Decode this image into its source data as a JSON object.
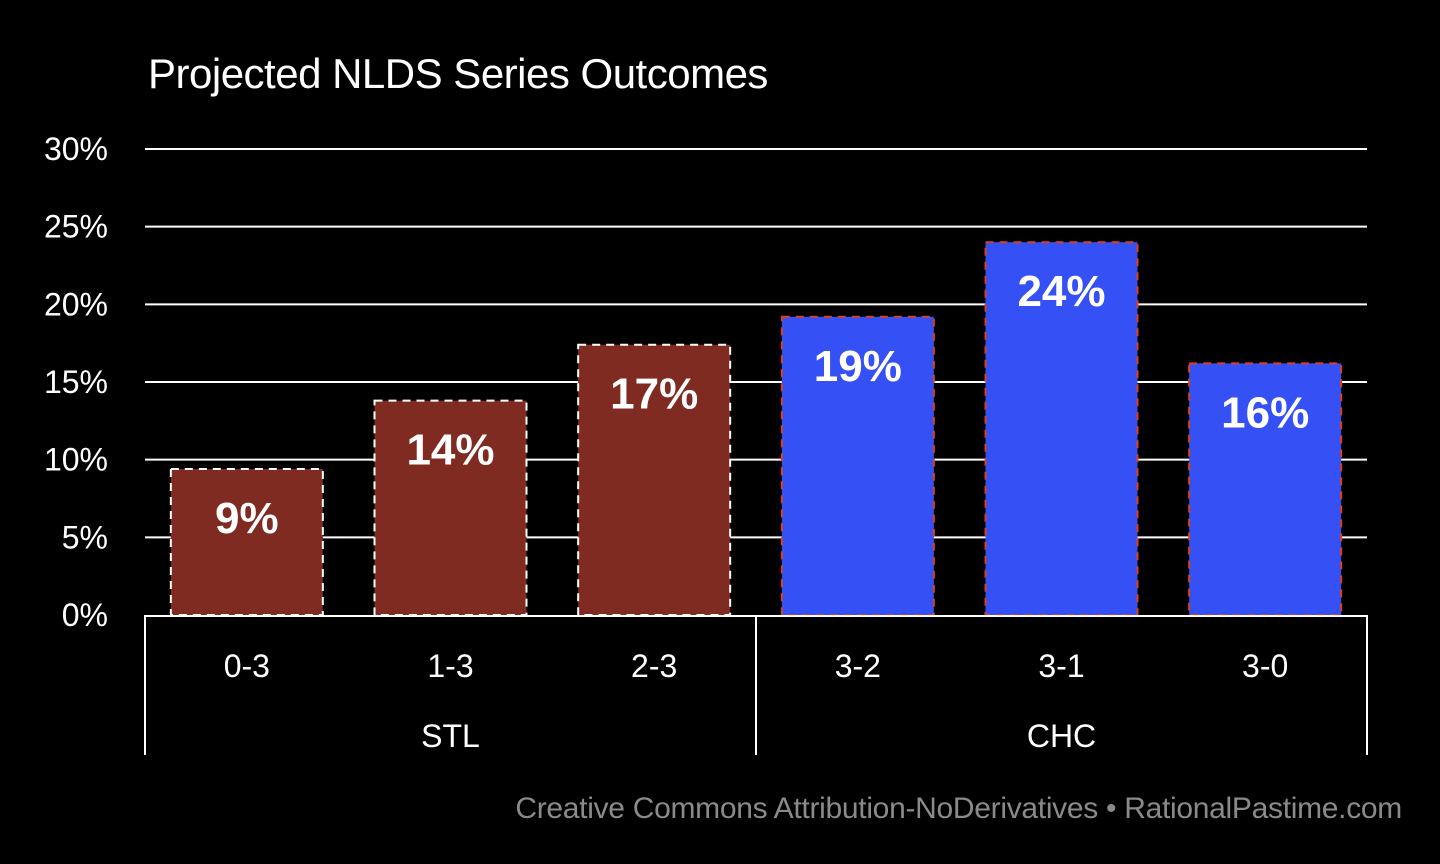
{
  "chart_data": {
    "type": "bar",
    "title": "Projected NLDS Series Outcomes",
    "xlabel": "",
    "ylabel": "",
    "ylim": [
      0,
      30
    ],
    "yticks": [
      "0%",
      "5%",
      "10%",
      "15%",
      "20%",
      "25%",
      "30%"
    ],
    "ytick_values": [
      0,
      5,
      10,
      15,
      20,
      25,
      30
    ],
    "grid": true,
    "categories": [
      "0-3",
      "1-3",
      "2-3",
      "3-2",
      "3-1",
      "3-0"
    ],
    "groups": [
      {
        "name": "STL",
        "categories": [
          "0-3",
          "1-3",
          "2-3"
        ],
        "color": "#7f2b22",
        "border_color": "#ffffff"
      },
      {
        "name": "CHC",
        "categories": [
          "3-2",
          "3-1",
          "3-0"
        ],
        "color": "#3550f5",
        "border_color": "#d9402a"
      }
    ],
    "values": [
      9.4,
      13.8,
      17.4,
      19.2,
      24.0,
      16.2
    ],
    "data_labels": [
      "9%",
      "14%",
      "17%",
      "19%",
      "24%",
      "16%"
    ],
    "bar_groups": [
      "STL",
      "STL",
      "STL",
      "CHC",
      "CHC",
      "CHC"
    ]
  },
  "footer": "Creative Commons Attribution-NoDerivatives • RationalPastime.com",
  "colors": {
    "background": "#000000",
    "grid": "#ffffff",
    "text": "#ffffff",
    "footer": "#8a8a8a"
  }
}
